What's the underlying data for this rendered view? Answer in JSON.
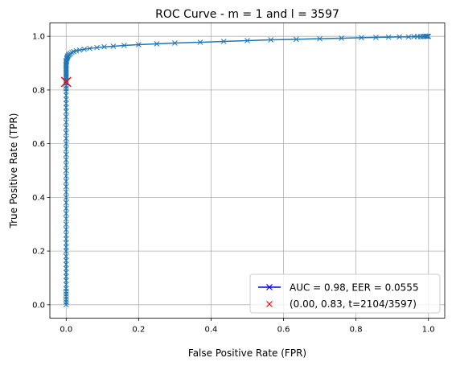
{
  "chart_data": {
    "type": "line",
    "title": "ROC Curve - m = 1 and l = 3597",
    "xlabel": "False Positive Rate (FPR)",
    "ylabel": "True Positive Rate (TPR)",
    "xlim": [
      -0.045,
      1.045
    ],
    "ylim": [
      -0.05,
      1.05
    ],
    "xticks": [
      "0.0",
      "0.2",
      "0.4",
      "0.6",
      "0.8",
      "1.0"
    ],
    "yticks": [
      "0.0",
      "0.2",
      "0.4",
      "0.6",
      "0.8",
      "1.0"
    ],
    "grid": true,
    "legend_position": "bottom-right",
    "series": [
      {
        "name": "AUC = 0.98, EER = 0.0555",
        "line_color": "#1f77b4",
        "legend_color": "#0000ff",
        "marker": "x",
        "x": [
          0.0,
          0.0,
          0.0,
          0.0,
          0.0,
          0.0,
          0.0,
          0.0,
          0.0,
          0.0,
          0.0,
          0.0,
          0.0,
          0.0,
          0.0,
          0.0,
          0.0,
          0.0,
          0.0,
          0.0,
          0.0,
          0.0,
          0.0,
          0.0,
          0.0,
          0.0,
          0.0,
          0.0,
          0.0,
          0.0,
          0.0,
          0.0,
          0.0,
          0.0,
          0.0,
          0.0,
          0.0,
          0.0,
          0.0,
          0.0,
          0.0,
          0.0,
          0.0,
          0.0,
          0.0,
          0.0,
          0.0,
          0.0,
          0.0,
          0.0,
          0.0,
          0.0,
          0.0,
          0.0,
          0.0,
          0.0,
          0.0,
          0.0,
          0.0,
          0.0,
          0.0,
          0.0,
          0.0,
          0.0,
          0.0,
          0.0,
          0.0,
          0.0,
          0.001,
          0.001,
          0.002,
          0.002,
          0.003,
          0.004,
          0.005,
          0.007,
          0.009,
          0.012,
          0.016,
          0.021,
          0.028,
          0.037,
          0.05,
          0.065,
          0.085,
          0.105,
          0.13,
          0.16,
          0.2,
          0.25,
          0.3,
          0.37,
          0.435,
          0.5,
          0.565,
          0.635,
          0.7,
          0.76,
          0.815,
          0.855,
          0.89,
          0.92,
          0.945,
          0.96,
          0.97,
          0.978,
          0.984,
          0.988,
          0.992,
          0.995,
          0.997,
          0.999,
          1.0
        ],
        "y": [
          0.0,
          0.01,
          0.02,
          0.03,
          0.04,
          0.05,
          0.06,
          0.075,
          0.09,
          0.105,
          0.12,
          0.135,
          0.15,
          0.165,
          0.18,
          0.2,
          0.215,
          0.23,
          0.245,
          0.26,
          0.28,
          0.3,
          0.32,
          0.34,
          0.36,
          0.38,
          0.4,
          0.42,
          0.44,
          0.46,
          0.48,
          0.5,
          0.52,
          0.54,
          0.56,
          0.58,
          0.6,
          0.62,
          0.64,
          0.66,
          0.68,
          0.7,
          0.72,
          0.735,
          0.75,
          0.765,
          0.78,
          0.795,
          0.805,
          0.815,
          0.825,
          0.83,
          0.835,
          0.84,
          0.845,
          0.85,
          0.855,
          0.86,
          0.865,
          0.87,
          0.875,
          0.88,
          0.885,
          0.89,
          0.895,
          0.9,
          0.905,
          0.91,
          0.905,
          0.91,
          0.915,
          0.918,
          0.921,
          0.924,
          0.927,
          0.93,
          0.933,
          0.936,
          0.94,
          0.943,
          0.946,
          0.949,
          0.952,
          0.955,
          0.958,
          0.961,
          0.963,
          0.966,
          0.969,
          0.972,
          0.975,
          0.978,
          0.981,
          0.984,
          0.987,
          0.989,
          0.991,
          0.993,
          0.995,
          0.996,
          0.997,
          0.998,
          0.998,
          0.999,
          0.999,
          0.999,
          0.999,
          1.0,
          1.0,
          1.0,
          1.0,
          1.0,
          1.0
        ]
      },
      {
        "name": "(0.00, 0.83, t=2104/3597)",
        "color": "#ff0000",
        "marker": "x",
        "x": [
          0.0
        ],
        "y": [
          0.83
        ]
      }
    ]
  }
}
